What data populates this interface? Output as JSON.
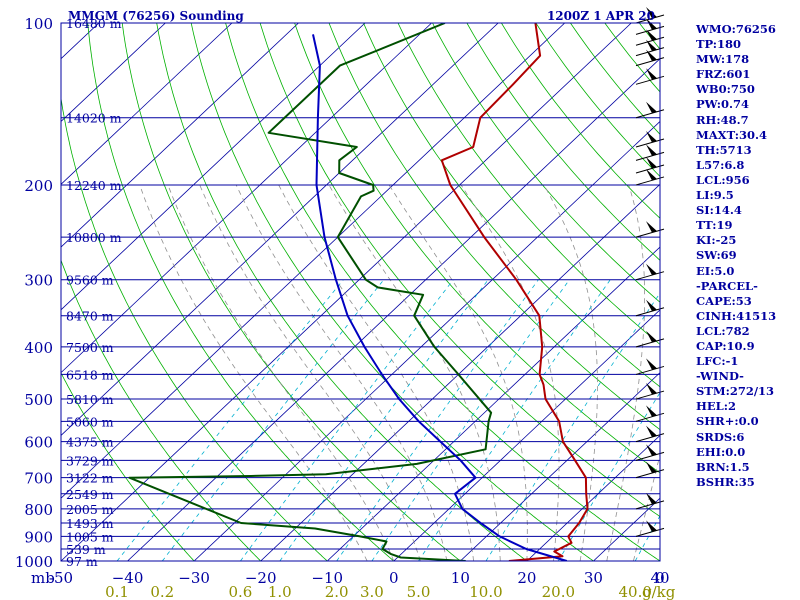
{
  "header": {
    "station": "MMGM (76256) Sounding",
    "datetime": "1200Z  1 APR 20"
  },
  "indices": [
    "WMO:76256",
    "TP:180",
    "MW:178",
    "FRZ:601",
    "WB0:750",
    "PW:0.74",
    "RH:48.7",
    "MAXT:30.4",
    "TH:5713",
    "L57:6.8",
    "LCL:956",
    "LI:9.5",
    "SI:14.4",
    "TT:19",
    "KI:-25",
    "SW:69",
    "EI:5.0",
    "-PARCEL-",
    "CAPE:53",
    "CINH:41513",
    "LCL:782",
    "CAP:10.9",
    "LFC:-1",
    "-WIND-",
    "STM:272/13",
    "HEL:2",
    "SHR+:0.0",
    "SRDS:6",
    "EHI:0.0",
    "BRN:1.5",
    "BSHR:35"
  ],
  "colors": {
    "frame": "#0000a0",
    "temperature": "#b00000",
    "dewpoint": "#005000",
    "parcel": "#0000c0",
    "dry_adiabat": "#00b000",
    "mixing_ratio": "#00b0d0",
    "moist_adiabat": "#909090",
    "wind_barb": "#000000"
  },
  "chart_data": {
    "type": "line",
    "subtype": "skew-T log-P sounding",
    "y_axis_label": "mb",
    "x_axis_label": "0",
    "mixing_ratio_unit": "g/kg",
    "ylim_hPa": [
      1000,
      100
    ],
    "xlim_C": [
      -50,
      40
    ],
    "y_scale": "log",
    "isobars": [
      {
        "p": 100,
        "label": "100",
        "height": "16480 m"
      },
      {
        "p": 150,
        "label": "",
        "height": "14020 m"
      },
      {
        "p": 200,
        "label": "200",
        "height": "12240 m"
      },
      {
        "p": 250,
        "label": "",
        "height": "10800 m"
      },
      {
        "p": 300,
        "label": "300",
        "height": "9560 m"
      },
      {
        "p": 350,
        "label": "",
        "height": "8470 m"
      },
      {
        "p": 400,
        "label": "400",
        "height": "7500 m"
      },
      {
        "p": 450,
        "label": "",
        "height": "6518 m"
      },
      {
        "p": 500,
        "label": "500",
        "height": "5810 m"
      },
      {
        "p": 550,
        "label": "",
        "height": "5060 m"
      },
      {
        "p": 600,
        "label": "600",
        "height": "4375 m"
      },
      {
        "p": 650,
        "label": "",
        "height": "3729 m"
      },
      {
        "p": 700,
        "label": "700",
        "height": "3122 m"
      },
      {
        "p": 750,
        "label": "",
        "height": "2549 m"
      },
      {
        "p": 800,
        "label": "800",
        "height": "2005 m"
      },
      {
        "p": 850,
        "label": "",
        "height": "1493 m"
      },
      {
        "p": 900,
        "label": "900",
        "height": "1005 m"
      },
      {
        "p": 950,
        "label": "",
        "height": "539 m"
      },
      {
        "p": 1000,
        "label": "1000",
        "height": "97 m"
      }
    ],
    "temperature_ticks": [
      -50,
      -40,
      -30,
      -20,
      -10,
      0,
      10,
      20,
      30,
      40
    ],
    "temperature_tick_labels": [
      "-50",
      "−40",
      "−30",
      "−20",
      "−10",
      "0",
      "10",
      "20",
      "30",
      "40"
    ],
    "mixing_ratio_ticks": [
      "0.1",
      "0.2",
      "0.6",
      "1.0",
      "2.0",
      "3.0",
      "5.0",
      "10.0",
      "20.0",
      "40.0"
    ],
    "mixing_ratio_values": [
      0.1,
      0.2,
      0.6,
      1.0,
      2.0,
      3.0,
      5.0,
      10.0,
      20.0,
      40.0
    ],
    "series": [
      {
        "role": "temperature",
        "points": [
          [
            1000,
            17.3
          ],
          [
            980,
            24.6
          ],
          [
            960,
            22.6
          ],
          [
            925,
            23.8
          ],
          [
            900,
            22.3
          ],
          [
            850,
            21.8
          ],
          [
            800,
            20.8
          ],
          [
            750,
            18.2
          ],
          [
            700,
            15.6
          ],
          [
            650,
            11.2
          ],
          [
            600,
            6.4
          ],
          [
            550,
            2.6
          ],
          [
            500,
            -3.0
          ],
          [
            470,
            -5.6
          ],
          [
            450,
            -7.8
          ],
          [
            400,
            -11.8
          ],
          [
            350,
            -17.2
          ],
          [
            300,
            -26.4
          ],
          [
            250,
            -38.0
          ],
          [
            200,
            -51.4
          ],
          [
            180,
            -56.6
          ],
          [
            170,
            -54.0
          ],
          [
            150,
            -57.6
          ],
          [
            130,
            -58.0
          ],
          [
            115,
            -58.5
          ],
          [
            100,
            -64.4
          ]
        ]
      },
      {
        "role": "dewpoint",
        "points": [
          [
            1000,
            10.8
          ],
          [
            985,
            0.5
          ],
          [
            970,
            -1.6
          ],
          [
            950,
            -3.6
          ],
          [
            920,
            -4.2
          ],
          [
            900,
            -9.0
          ],
          [
            870,
            -17.0
          ],
          [
            850,
            -29.0
          ],
          [
            700,
            -53.0
          ],
          [
            695,
            -35.0
          ],
          [
            690,
            -24.0
          ],
          [
            660,
            -12.0
          ],
          [
            620,
            -4.0
          ],
          [
            550,
            -8.0
          ],
          [
            530,
            -9.0
          ],
          [
            450,
            -20.0
          ],
          [
            400,
            -28.0
          ],
          [
            350,
            -36.0
          ],
          [
            320,
            -38.0
          ],
          [
            310,
            -46.0
          ],
          [
            300,
            -49.0
          ],
          [
            250,
            -60.0
          ],
          [
            210,
            -63.0
          ],
          [
            205,
            -62.0
          ],
          [
            200,
            -63.0
          ],
          [
            190,
            -70.0
          ],
          [
            180,
            -72.0
          ],
          [
            170,
            -71.5
          ],
          [
            160,
            -87.0
          ],
          [
            120,
            -87.0
          ],
          [
            100,
            -78.0
          ]
        ]
      },
      {
        "role": "parcel",
        "points": [
          [
            1000,
            26.0
          ],
          [
            950,
            18.0
          ],
          [
            900,
            12.0
          ],
          [
            850,
            7.0
          ],
          [
            800,
            2.0
          ],
          [
            750,
            -1.5
          ],
          [
            700,
            -1.0
          ],
          [
            650,
            -6.0
          ],
          [
            600,
            -12.0
          ],
          [
            550,
            -18.5
          ],
          [
            500,
            -25.0
          ],
          [
            450,
            -31.5
          ],
          [
            400,
            -38.5
          ],
          [
            350,
            -46.0
          ],
          [
            300,
            -53.5
          ],
          [
            250,
            -62.0
          ],
          [
            200,
            -71.5
          ],
          [
            150,
            -82.0
          ],
          [
            120,
            -90.0
          ],
          [
            105,
            -96.0
          ]
        ]
      }
    ],
    "wind_barbs": [
      {
        "p": 100
      },
      {
        "p": 105
      },
      {
        "p": 110
      },
      {
        "p": 115
      },
      {
        "p": 120
      },
      {
        "p": 130
      },
      {
        "p": 150
      },
      {
        "p": 170
      },
      {
        "p": 180
      },
      {
        "p": 190
      },
      {
        "p": 200
      },
      {
        "p": 250
      },
      {
        "p": 300
      },
      {
        "p": 350
      },
      {
        "p": 400
      },
      {
        "p": 450
      },
      {
        "p": 500
      },
      {
        "p": 550
      },
      {
        "p": 600
      },
      {
        "p": 650
      },
      {
        "p": 700
      },
      {
        "p": 800
      },
      {
        "p": 900
      }
    ]
  }
}
